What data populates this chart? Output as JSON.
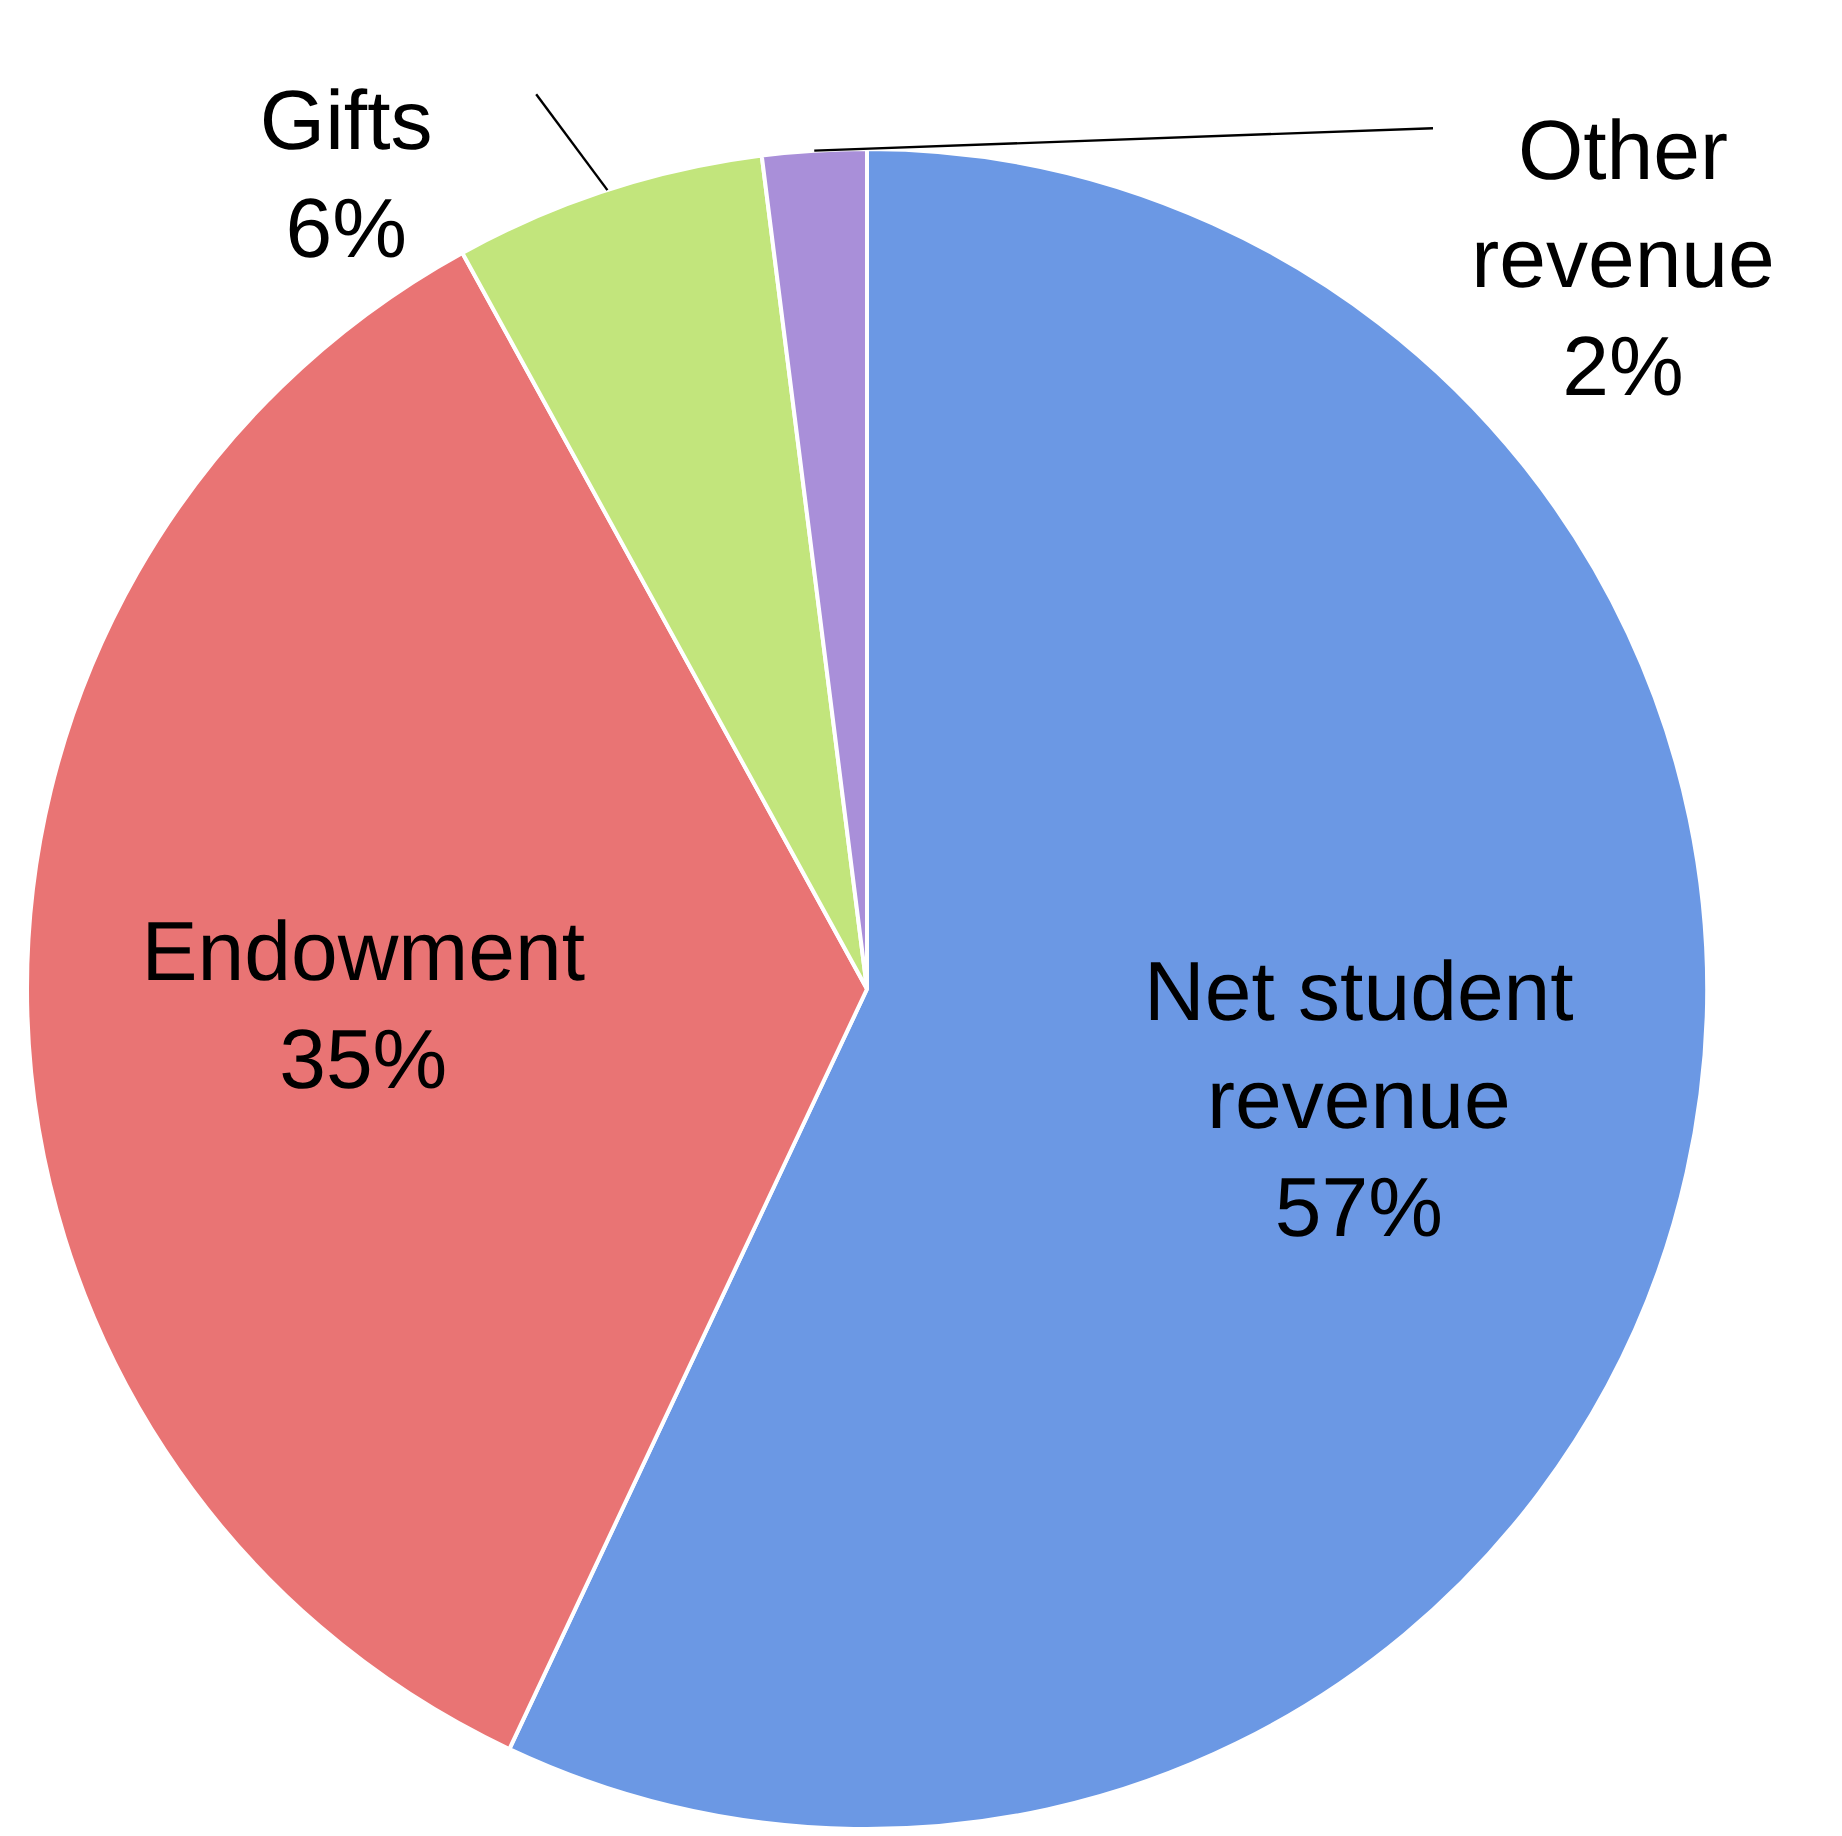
{
  "chart_data": {
    "type": "pie",
    "categories": [
      "Net student revenue",
      "Endowment",
      "Gifts",
      "Other revenue"
    ],
    "values": [
      57,
      35,
      6,
      2
    ],
    "colors": [
      "#6b98e4",
      "#e97474",
      "#c2e57c",
      "#a98fd9"
    ],
    "value_labels": [
      "57%",
      "35%",
      "6%",
      "2%"
    ]
  }
}
